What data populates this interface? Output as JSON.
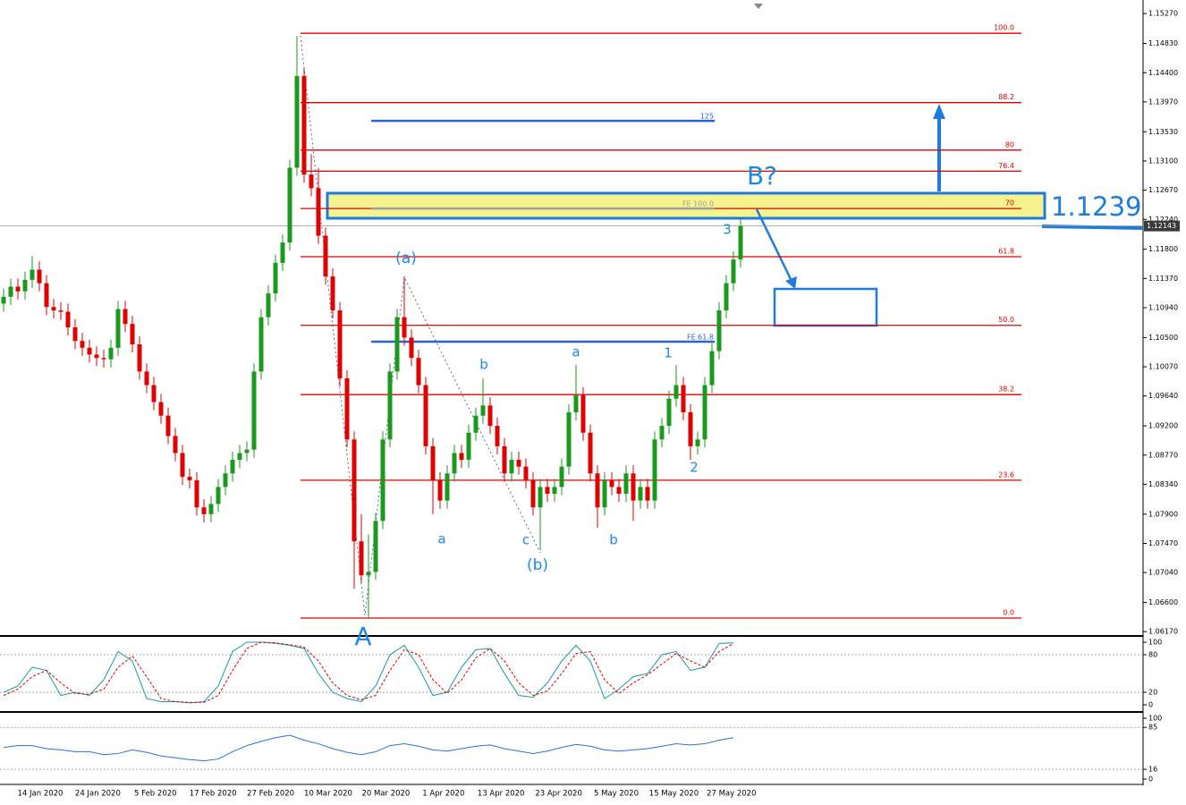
{
  "chart_data": [
    {
      "type": "candlestick",
      "up_color": "#1a9a1a",
      "down_color": "#e00000",
      "ylim": [
        1.0612,
        1.1547
      ],
      "yticks": [
        {
          "value": 1.1527,
          "label": "1.15270"
        },
        {
          "value": 1.1483,
          "label": "1.14830"
        },
        {
          "value": 1.144,
          "label": "1.14400"
        },
        {
          "value": 1.1397,
          "label": "1.13970"
        },
        {
          "value": 1.1353,
          "label": "1.13530"
        },
        {
          "value": 1.131,
          "label": "1.13100"
        },
        {
          "value": 1.1267,
          "label": "1.12670"
        },
        {
          "value": 1.1224,
          "label": "1.12240"
        },
        {
          "value": 1.118,
          "label": "1.11800"
        },
        {
          "value": 1.1137,
          "label": "1.11370"
        },
        {
          "value": 1.1094,
          "label": "1.10940"
        },
        {
          "value": 1.105,
          "label": "1.10500"
        },
        {
          "value": 1.1007,
          "label": "1.10070"
        },
        {
          "value": 1.0964,
          "label": "1.09640"
        },
        {
          "value": 1.092,
          "label": "1.09200"
        },
        {
          "value": 1.0877,
          "label": "1.08770"
        },
        {
          "value": 1.0834,
          "label": "1.08340"
        },
        {
          "value": 1.079,
          "label": "1.07900"
        },
        {
          "value": 1.0747,
          "label": "1.07470"
        },
        {
          "value": 1.0704,
          "label": "1.07040"
        },
        {
          "value": 1.066,
          "label": "1.06600"
        },
        {
          "value": 1.0617,
          "label": "1.06170"
        }
      ],
      "current_price": 1.12143,
      "x_tick_labels": [
        "14 Jan 2020",
        "24 Jan 2020",
        "5 Feb 2020",
        "17 Feb 2020",
        "27 Feb 2020",
        "10 Mar 2020",
        "20 Mar 2020",
        "1 Apr 2020",
        "13 Apr 2020",
        "23 Apr 2020",
        "5 May 2020",
        "15 May 2020",
        "27 May 2020"
      ],
      "fib_levels": [
        {
          "value": 1.1498,
          "label": "100.0"
        },
        {
          "value": 1.1396,
          "label": "88.2"
        },
        {
          "value": 1.1326,
          "label": "80"
        },
        {
          "value": 1.1295,
          "label": "76.4"
        },
        {
          "value": 1.124,
          "label": "70"
        },
        {
          "value": 1.1169,
          "label": "61.8"
        },
        {
          "value": 1.1068,
          "label": "50.0"
        },
        {
          "value": 1.0966,
          "label": "38.2"
        },
        {
          "value": 1.084,
          "label": "23.6"
        },
        {
          "value": 1.0637,
          "label": "0.0"
        }
      ],
      "fe_lines": [
        {
          "value": 1.1369,
          "label": "125",
          "color": "#2a62d8"
        },
        {
          "value": 1.124,
          "label": "FE 100.0",
          "color": "#a0a0a0"
        },
        {
          "value": 1.1044,
          "label": "FE 61.8",
          "color": "#2a62d8"
        }
      ],
      "target_label": "1.1239",
      "wave_labels": [
        "(a)",
        "b",
        "a",
        "1",
        "3",
        "a",
        "c",
        "(b)",
        "b",
        "2",
        "A",
        "B?"
      ],
      "candles": [
        [
          1.11,
          1.1122,
          1.1088,
          1.111
        ],
        [
          1.111,
          1.1137,
          1.1098,
          1.1125
        ],
        [
          1.1125,
          1.1137,
          1.1106,
          1.1118
        ],
        [
          1.1118,
          1.1147,
          1.1106,
          1.1135
        ],
        [
          1.1135,
          1.117,
          1.1123,
          1.115
        ],
        [
          1.115,
          1.1162,
          1.1118,
          1.113
        ],
        [
          1.113,
          1.1142,
          1.1083,
          1.1095
        ],
        [
          1.1095,
          1.1107,
          1.1078,
          1.109
        ],
        [
          1.109,
          1.1102,
          1.1076,
          1.1088
        ],
        [
          1.1088,
          1.11,
          1.1053,
          1.1065
        ],
        [
          1.1065,
          1.1077,
          1.1033,
          1.1045
        ],
        [
          1.1045,
          1.1057,
          1.1023,
          1.1035
        ],
        [
          1.1035,
          1.1047,
          1.1013,
          1.1025
        ],
        [
          1.1025,
          1.1037,
          1.1008,
          1.102
        ],
        [
          1.102,
          1.1032,
          1.1006,
          1.1018
        ],
        [
          1.1018,
          1.1047,
          1.1006,
          1.1035
        ],
        [
          1.1035,
          1.1104,
          1.1023,
          1.1092
        ],
        [
          1.1092,
          1.1104,
          1.1058,
          1.107
        ],
        [
          1.107,
          1.1082,
          1.1028,
          1.104
        ],
        [
          1.104,
          1.1052,
          1.0988,
          1.1
        ],
        [
          1.1,
          1.1012,
          1.0968,
          1.098
        ],
        [
          1.098,
          1.0992,
          1.0943,
          1.0955
        ],
        [
          1.0955,
          1.0967,
          1.0923,
          1.0935
        ],
        [
          1.0935,
          1.0947,
          1.0893,
          1.0905
        ],
        [
          1.0905,
          1.0917,
          1.0868,
          1.088
        ],
        [
          1.088,
          1.0892,
          1.0833,
          1.0845
        ],
        [
          1.0845,
          1.0857,
          1.0828,
          1.084
        ],
        [
          1.084,
          1.0852,
          1.0788,
          1.08
        ],
        [
          1.08,
          1.0812,
          1.0778,
          1.079
        ],
        [
          1.079,
          1.0817,
          1.0778,
          1.0805
        ],
        [
          1.0805,
          1.0842,
          1.0793,
          1.083
        ],
        [
          1.083,
          1.0862,
          1.0818,
          1.085
        ],
        [
          1.085,
          1.0882,
          1.0838,
          1.087
        ],
        [
          1.087,
          1.0892,
          1.0858,
          1.088
        ],
        [
          1.088,
          1.0897,
          1.0868,
          1.0885
        ],
        [
          1.0885,
          1.1012,
          1.0873,
          1.1
        ],
        [
          1.1,
          1.1092,
          1.0988,
          1.108
        ],
        [
          1.108,
          1.1127,
          1.1068,
          1.1115
        ],
        [
          1.1115,
          1.1172,
          1.1103,
          1.116
        ],
        [
          1.116,
          1.1202,
          1.1148,
          1.119
        ],
        [
          1.119,
          1.1312,
          1.1178,
          1.13
        ],
        [
          1.13,
          1.1494,
          1.1288,
          1.1435
        ],
        [
          1.1435,
          1.1447,
          1.1278,
          1.129
        ],
        [
          1.129,
          1.132,
          1.1258,
          1.127
        ],
        [
          1.127,
          1.13,
          1.1188,
          1.12
        ],
        [
          1.12,
          1.1212,
          1.1128,
          1.114
        ],
        [
          1.114,
          1.1152,
          1.1078,
          1.109
        ],
        [
          1.109,
          1.1102,
          1.0978,
          1.099
        ],
        [
          1.099,
          1.1002,
          1.0888,
          1.09
        ],
        [
          1.09,
          1.0912,
          1.068,
          1.075
        ],
        [
          1.075,
          1.079,
          1.0688,
          1.07
        ],
        [
          1.07,
          1.076,
          1.0638,
          1.0705
        ],
        [
          1.0705,
          1.0792,
          1.0693,
          1.078
        ],
        [
          1.078,
          1.0912,
          1.0768,
          1.09
        ],
        [
          1.09,
          1.1012,
          1.0888,
          1.1
        ],
        [
          1.1,
          1.1092,
          1.0988,
          1.108
        ],
        [
          1.108,
          1.114,
          1.1038,
          1.105
        ],
        [
          1.105,
          1.1062,
          1.1008,
          1.102
        ],
        [
          1.102,
          1.1032,
          1.0968,
          1.098
        ],
        [
          1.098,
          1.0992,
          1.0878,
          1.089
        ],
        [
          1.089,
          1.0902,
          1.079,
          1.084
        ],
        [
          1.084,
          1.0852,
          1.0798,
          1.081
        ],
        [
          1.081,
          1.0862,
          1.0798,
          1.085
        ],
        [
          1.085,
          1.0892,
          1.0838,
          1.088
        ],
        [
          1.088,
          1.0892,
          1.0858,
          1.087
        ],
        [
          1.087,
          1.0922,
          1.0858,
          1.091
        ],
        [
          1.091,
          1.0947,
          1.0898,
          1.0935
        ],
        [
          1.0935,
          1.099,
          1.0923,
          1.095
        ],
        [
          1.095,
          1.0962,
          1.0908,
          1.092
        ],
        [
          1.092,
          1.0932,
          1.0878,
          1.089
        ],
        [
          1.089,
          1.0902,
          1.0838,
          1.085
        ],
        [
          1.085,
          1.0882,
          1.0838,
          1.087
        ],
        [
          1.087,
          1.0882,
          1.0848,
          1.086
        ],
        [
          1.086,
          1.0872,
          1.0828,
          1.084
        ],
        [
          1.084,
          1.0852,
          1.0788,
          1.08
        ],
        [
          1.08,
          1.0842,
          1.0737,
          1.083
        ],
        [
          1.083,
          1.0842,
          1.0808,
          1.082
        ],
        [
          1.082,
          1.0842,
          1.0808,
          1.083
        ],
        [
          1.083,
          1.0872,
          1.0818,
          1.086
        ],
        [
          1.086,
          1.0952,
          1.0848,
          1.094
        ],
        [
          1.094,
          1.101,
          1.0928,
          1.0965
        ],
        [
          1.0965,
          1.0977,
          1.0898,
          1.091
        ],
        [
          1.091,
          1.0922,
          1.0838,
          1.085
        ],
        [
          1.085,
          1.0862,
          1.077,
          1.08
        ],
        [
          1.08,
          1.0852,
          1.0788,
          1.084
        ],
        [
          1.084,
          1.0852,
          1.0818,
          1.083
        ],
        [
          1.083,
          1.0842,
          1.0808,
          1.082
        ],
        [
          1.082,
          1.0862,
          1.0808,
          1.085
        ],
        [
          1.085,
          1.0862,
          1.078,
          1.081
        ],
        [
          1.081,
          1.0842,
          1.0798,
          1.083
        ],
        [
          1.083,
          1.0842,
          1.0798,
          1.081
        ],
        [
          1.081,
          1.0912,
          1.0798,
          1.09
        ],
        [
          1.09,
          1.0932,
          1.0888,
          1.092
        ],
        [
          1.092,
          1.0972,
          1.0908,
          1.096
        ],
        [
          1.096,
          1.101,
          1.0948,
          1.098
        ],
        [
          1.098,
          1.0992,
          1.0928,
          1.094
        ],
        [
          1.094,
          1.0952,
          1.087,
          1.089
        ],
        [
          1.089,
          1.0912,
          1.0878,
          1.09
        ],
        [
          1.09,
          1.0992,
          1.0888,
          1.098
        ],
        [
          1.098,
          1.1042,
          1.0968,
          1.103
        ],
        [
          1.103,
          1.1102,
          1.1018,
          1.109
        ],
        [
          1.109,
          1.1142,
          1.1078,
          1.113
        ],
        [
          1.113,
          1.1177,
          1.1118,
          1.1165
        ],
        [
          1.1165,
          1.1224,
          1.1153,
          1.12143
        ]
      ]
    },
    {
      "type": "line",
      "ylim": [
        0,
        100
      ],
      "yticks": [
        100,
        80,
        20,
        0
      ],
      "grid_levels": [
        80,
        20
      ],
      "series": [
        {
          "color": "#1a9aa0",
          "values": [
            20,
            30,
            60,
            55,
            15,
            20,
            15,
            40,
            85,
            70,
            10,
            5,
            5,
            3,
            5,
            30,
            85,
            100,
            100,
            98,
            95,
            90,
            50,
            20,
            10,
            5,
            30,
            80,
            95,
            60,
            15,
            20,
            60,
            88,
            90,
            50,
            15,
            12,
            35,
            70,
            95,
            70,
            10,
            25,
            45,
            50,
            80,
            85,
            55,
            60,
            98,
            99
          ]
        },
        {
          "color": "#e00000",
          "dashed": true,
          "values": [
            15,
            25,
            45,
            55,
            35,
            18,
            17,
            25,
            60,
            78,
            45,
            10,
            5,
            4,
            4,
            15,
            55,
            90,
            100,
            99,
            96,
            92,
            70,
            35,
            15,
            8,
            15,
            55,
            88,
            80,
            40,
            18,
            40,
            75,
            90,
            70,
            35,
            15,
            22,
            50,
            82,
            85,
            40,
            18,
            35,
            48,
            65,
            82,
            70,
            60,
            85,
            98
          ]
        }
      ]
    },
    {
      "type": "line",
      "ylim": [
        0,
        100
      ],
      "yticks": [
        100,
        85,
        16,
        0
      ],
      "grid_levels": [
        85,
        16
      ],
      "series": [
        {
          "color": "#2a72d8",
          "values": [
            52,
            55,
            55,
            50,
            48,
            45,
            45,
            40,
            42,
            48,
            44,
            38,
            35,
            32,
            30,
            33,
            45,
            55,
            62,
            68,
            72,
            64,
            58,
            50,
            44,
            40,
            45,
            55,
            58,
            54,
            48,
            46,
            50,
            54,
            56,
            50,
            46,
            42,
            46,
            52,
            57,
            54,
            48,
            46,
            48,
            50,
            54,
            58,
            56,
            58,
            64,
            68
          ]
        }
      ]
    }
  ]
}
